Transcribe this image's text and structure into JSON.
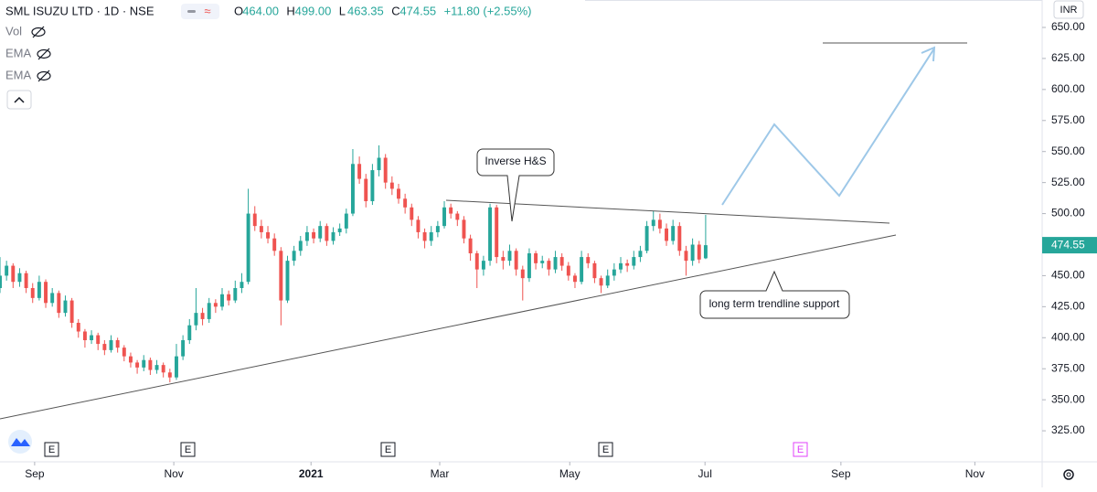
{
  "chart_data": {
    "type": "candlestick",
    "title": "SML ISUZU LTD · 1D · NSE",
    "ohlc_legend": {
      "keys": [
        "O",
        "H",
        "L",
        "C"
      ],
      "texts": [
        "464.00",
        "499.00",
        "463.35",
        "474.55"
      ],
      "change": "+11.80 (+2.55%)"
    },
    "indicators": [
      "Vol",
      "EMA",
      "EMA"
    ],
    "currency": "INR",
    "annotations": [
      "Inverse H&S",
      "long term trendline support"
    ],
    "earnings": [
      "E",
      "E",
      "E",
      "E",
      "E"
    ],
    "up_color": "#26a69a",
    "down_color": "#ef5350",
    "last_price": {
      "value": 474.55,
      "label": "474.55"
    },
    "xlim": [
      0,
      159.5
    ],
    "xticks": [
      {
        "value": 5.3,
        "label": "Sep"
      },
      {
        "value": 26.6,
        "label": "Nov"
      },
      {
        "value": 47.6,
        "label": "2021"
      },
      {
        "value": 67.3,
        "label": "Mar"
      },
      {
        "value": 87.2,
        "label": "May"
      },
      {
        "value": 107.9,
        "label": "Jul"
      },
      {
        "value": 128.7,
        "label": "Sep"
      },
      {
        "value": 149.2,
        "label": "Nov"
      }
    ],
    "ylim": [
      300,
      672.1
    ],
    "yticks": [
      {
        "value": 325,
        "label": "325.00"
      },
      {
        "value": 350,
        "label": "350.00"
      },
      {
        "value": 375,
        "label": "375.00"
      },
      {
        "value": 400,
        "label": "400.00"
      },
      {
        "value": 425,
        "label": "425.00"
      },
      {
        "value": 450,
        "label": "450.00"
      },
      {
        "value": 475,
        "label": "475.00"
      },
      {
        "value": 500,
        "label": "500.00"
      },
      {
        "value": 525,
        "label": "525.00"
      },
      {
        "value": 550,
        "label": "550.00"
      },
      {
        "value": 575,
        "label": "575.00"
      },
      {
        "value": 600,
        "label": "600.00"
      },
      {
        "value": 625,
        "label": "625.00"
      },
      {
        "value": 650,
        "label": "650.00"
      }
    ],
    "candles": [
      [
        440,
        465,
        436,
        450
      ],
      [
        450,
        462,
        446,
        458
      ],
      [
        458,
        460,
        440,
        445
      ],
      [
        445,
        456,
        441,
        452
      ],
      [
        452,
        454,
        436,
        440
      ],
      [
        440,
        444,
        428,
        432
      ],
      [
        432,
        450,
        430,
        445
      ],
      [
        445,
        447,
        424,
        428
      ],
      [
        428,
        440,
        425,
        436
      ],
      [
        436,
        438,
        416,
        420
      ],
      [
        420,
        434,
        417,
        430
      ],
      [
        430,
        432,
        408,
        412
      ],
      [
        412,
        415,
        400,
        405
      ],
      [
        405,
        407,
        392,
        398
      ],
      [
        398,
        406,
        395,
        402
      ],
      [
        402,
        404,
        390,
        395
      ],
      [
        395,
        398,
        386,
        390
      ],
      [
        390,
        402,
        388,
        398
      ],
      [
        398,
        400,
        388,
        392
      ],
      [
        392,
        394,
        381,
        385
      ],
      [
        385,
        388,
        376,
        380
      ],
      [
        380,
        382,
        371,
        376
      ],
      [
        376,
        386,
        373,
        382
      ],
      [
        382,
        384,
        370,
        374
      ],
      [
        374,
        382,
        371,
        378
      ],
      [
        378,
        380,
        368,
        372
      ],
      [
        372,
        375,
        364,
        368
      ],
      [
        368,
        395,
        366,
        385
      ],
      [
        385,
        402,
        382,
        398
      ],
      [
        398,
        415,
        395,
        410
      ],
      [
        410,
        440,
        406,
        420
      ],
      [
        420,
        424,
        410,
        415
      ],
      [
        415,
        432,
        412,
        428
      ],
      [
        428,
        431,
        420,
        425
      ],
      [
        425,
        440,
        422,
        435
      ],
      [
        435,
        438,
        426,
        430
      ],
      [
        430,
        446,
        428,
        440
      ],
      [
        440,
        452,
        436,
        445
      ],
      [
        445,
        520,
        443,
        500
      ],
      [
        500,
        506,
        486,
        490
      ],
      [
        490,
        495,
        480,
        485
      ],
      [
        485,
        490,
        476,
        480
      ],
      [
        480,
        484,
        466,
        470
      ],
      [
        470,
        473,
        410,
        430
      ],
      [
        430,
        466,
        428,
        462
      ],
      [
        462,
        474,
        458,
        470
      ],
      [
        470,
        482,
        466,
        478
      ],
      [
        478,
        490,
        474,
        485
      ],
      [
        485,
        488,
        476,
        480
      ],
      [
        480,
        494,
        477,
        490
      ],
      [
        490,
        492,
        474,
        478
      ],
      [
        478,
        489,
        475,
        485
      ],
      [
        485,
        492,
        482,
        488
      ],
      [
        488,
        504,
        484,
        500
      ],
      [
        500,
        552,
        498,
        540
      ],
      [
        540,
        546,
        524,
        528
      ],
      [
        528,
        532,
        505,
        510
      ],
      [
        510,
        540,
        507,
        535
      ],
      [
        535,
        555,
        530,
        545
      ],
      [
        545,
        548,
        520,
        525
      ],
      [
        525,
        530,
        515,
        520
      ],
      [
        520,
        524,
        508,
        512
      ],
      [
        512,
        516,
        500,
        505
      ],
      [
        505,
        508,
        490,
        495
      ],
      [
        495,
        498,
        480,
        485
      ],
      [
        485,
        488,
        472,
        478
      ],
      [
        478,
        490,
        474,
        485
      ],
      [
        485,
        494,
        481,
        490
      ],
      [
        490,
        510,
        488,
        505
      ],
      [
        505,
        508,
        496,
        500
      ],
      [
        500,
        502,
        490,
        495
      ],
      [
        495,
        498,
        476,
        480
      ],
      [
        480,
        483,
        462,
        468
      ],
      [
        468,
        470,
        440,
        455
      ],
      [
        455,
        466,
        450,
        462
      ],
      [
        462,
        508,
        458,
        505
      ],
      [
        505,
        507,
        460,
        465
      ],
      [
        465,
        470,
        455,
        462
      ],
      [
        462,
        475,
        458,
        470
      ],
      [
        470,
        472,
        450,
        455
      ],
      [
        455,
        458,
        430,
        448
      ],
      [
        448,
        472,
        445,
        468
      ],
      [
        468,
        470,
        455,
        460
      ],
      [
        460,
        466,
        456,
        462
      ],
      [
        462,
        464,
        450,
        455
      ],
      [
        455,
        470,
        452,
        465
      ],
      [
        465,
        468,
        454,
        458
      ],
      [
        458,
        461,
        446,
        450
      ],
      [
        450,
        452,
        440,
        445
      ],
      [
        445,
        470,
        443,
        465
      ],
      [
        465,
        468,
        456,
        460
      ],
      [
        460,
        462,
        444,
        448
      ],
      [
        448,
        450,
        436,
        442
      ],
      [
        442,
        455,
        440,
        450
      ],
      [
        450,
        460,
        446,
        455
      ],
      [
        455,
        465,
        452,
        460
      ],
      [
        460,
        463,
        453,
        458
      ],
      [
        458,
        470,
        455,
        465
      ],
      [
        465,
        474,
        461,
        470
      ],
      [
        470,
        494,
        468,
        490
      ],
      [
        490,
        502,
        486,
        495
      ],
      [
        495,
        500,
        484,
        488
      ],
      [
        488,
        492,
        474,
        478
      ],
      [
        478,
        495,
        475,
        490
      ],
      [
        490,
        493,
        466,
        470
      ],
      [
        470,
        474,
        450,
        462
      ],
      [
        462,
        480,
        458,
        475
      ],
      [
        475,
        478,
        460,
        463
      ],
      [
        464,
        499,
        463.35,
        474.55
      ]
    ]
  }
}
